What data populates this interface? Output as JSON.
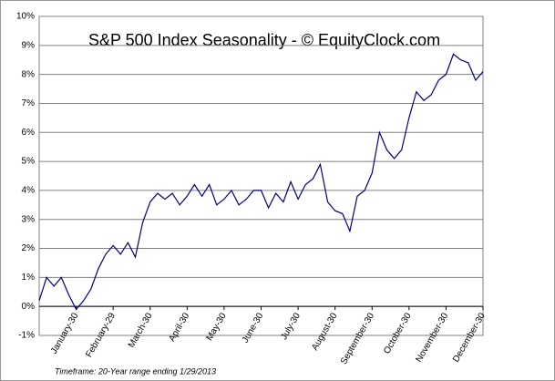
{
  "chart_data": {
    "type": "line",
    "title": "S&P 500 Index Seasonality - © EquityClock.com",
    "footnote": "Timeframe: 20-Year range ending 1/29/2013",
    "categories": [
      null,
      null,
      null,
      null,
      null,
      "January-30",
      null,
      null,
      null,
      null,
      "February-29",
      null,
      null,
      null,
      null,
      "March-30",
      null,
      null,
      null,
      null,
      "April-30",
      null,
      null,
      null,
      null,
      "May-30",
      null,
      null,
      null,
      null,
      "June-30",
      null,
      null,
      null,
      null,
      "July-30",
      null,
      null,
      null,
      null,
      "August-30",
      null,
      null,
      null,
      null,
      "September-30",
      null,
      null,
      null,
      null,
      "October-30",
      null,
      null,
      null,
      null,
      "November-30",
      null,
      null,
      null,
      null,
      "December-30"
    ],
    "values": [
      0.2,
      1.0,
      0.7,
      1.0,
      0.4,
      -0.1,
      0.2,
      0.6,
      1.3,
      1.8,
      2.1,
      1.8,
      2.2,
      1.7,
      2.9,
      3.6,
      3.9,
      3.7,
      3.9,
      3.5,
      3.8,
      4.2,
      3.8,
      4.2,
      3.5,
      3.7,
      4.0,
      3.5,
      3.7,
      4.0,
      4.0,
      3.4,
      3.9,
      3.6,
      4.3,
      3.7,
      4.2,
      4.4,
      4.9,
      3.6,
      3.3,
      3.2,
      2.6,
      3.8,
      4.0,
      4.6,
      6.0,
      5.4,
      5.1,
      5.4,
      6.5,
      7.4,
      7.1,
      7.3,
      7.8,
      8.0,
      8.7,
      8.5,
      8.4,
      7.8,
      8.1
    ],
    "color": "#000080",
    "ylim": [
      -1,
      10
    ],
    "yticks": [
      {
        "value": -1,
        "label": "-1%"
      },
      {
        "value": 0,
        "label": "0%"
      },
      {
        "value": 1,
        "label": "1%"
      },
      {
        "value": 2,
        "label": "2%"
      },
      {
        "value": 3,
        "label": "3%"
      },
      {
        "value": 4,
        "label": "4%"
      },
      {
        "value": 5,
        "label": "5%"
      },
      {
        "value": 6,
        "label": "6%"
      },
      {
        "value": 7,
        "label": "7%"
      },
      {
        "value": 8,
        "label": "8%"
      },
      {
        "value": 9,
        "label": "9%"
      },
      {
        "value": 10,
        "label": "10%"
      }
    ],
    "grid": true
  }
}
